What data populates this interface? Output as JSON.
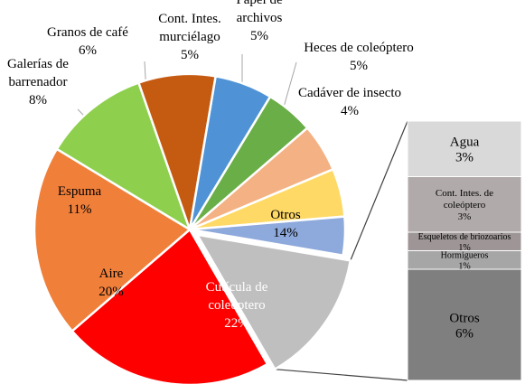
{
  "chart_data": {
    "type": "pie",
    "title": "",
    "main_pie": {
      "slices": [
        {
          "label_lines": [
            "Cutícula de",
            "coleóptero"
          ],
          "value_label": "22%",
          "value": 22,
          "color": "#FF0000",
          "label_color": "#FFFFFF"
        },
        {
          "label_lines": [
            "Aire"
          ],
          "value_label": "20%",
          "value": 20,
          "color": "#F07F3A",
          "label_color": "#000000"
        },
        {
          "label_lines": [
            "Espuma"
          ],
          "value_label": "11%",
          "value": 11,
          "color": "#8ED04E",
          "label_color": "#000000"
        },
        {
          "label_lines": [
            "Galerías de",
            "barrenador"
          ],
          "value_label": "8%",
          "value": 8,
          "color": "#C55A11",
          "label_color": "#000000"
        },
        {
          "label_lines": [
            "Granos de café"
          ],
          "value_label": "6%",
          "value": 6,
          "color": "#4F93D6",
          "label_color": "#000000"
        },
        {
          "label_lines": [
            "Cont. Intes.",
            "murciélago"
          ],
          "value_label": "5%",
          "value": 5,
          "color": "#6AAE47",
          "label_color": "#000000"
        },
        {
          "label_lines": [
            "Papel de",
            "archivos"
          ],
          "value_label": "5%",
          "value": 5,
          "color": "#F4B183",
          "label_color": "#000000"
        },
        {
          "label_lines": [
            "Heces de coleóptero"
          ],
          "value_label": "5%",
          "value": 5,
          "color": "#FFD966",
          "label_color": "#000000"
        },
        {
          "label_lines": [
            "Cadáver de insecto"
          ],
          "value_label": "4%",
          "value": 4,
          "color": "#8EA9DB",
          "label_color": "#000000"
        },
        {
          "label_lines": [
            "Otros"
          ],
          "value_label": "14%",
          "value": 14,
          "color": "#BFBFBF",
          "label_color": "#000000",
          "exploded": true
        }
      ]
    },
    "breakdown_bar": {
      "segments": [
        {
          "label_lines": [
            "Agua"
          ],
          "value_label": "3%",
          "value": 3,
          "color": "#D9D9D9",
          "label_color": "#000000"
        },
        {
          "label_lines": [
            "Cont. Intes. de",
            "coleóptero"
          ],
          "value_label": "3%",
          "value": 3,
          "color": "#B1AAAA",
          "label_color": "#000000"
        },
        {
          "label_lines": [
            "Esqueletos de briozoarios"
          ],
          "value_label": "1%",
          "value": 1,
          "color": "#9E9696",
          "label_color": "#000000"
        },
        {
          "label_lines": [
            "Hormigueros"
          ],
          "value_label": "1%",
          "value": 1,
          "color": "#A6A6A6",
          "label_color": "#000000"
        },
        {
          "label_lines": [
            "Otros"
          ],
          "value_label": "6%",
          "value": 6,
          "color": "#7F7F7F",
          "label_color": "#000000"
        }
      ]
    }
  }
}
